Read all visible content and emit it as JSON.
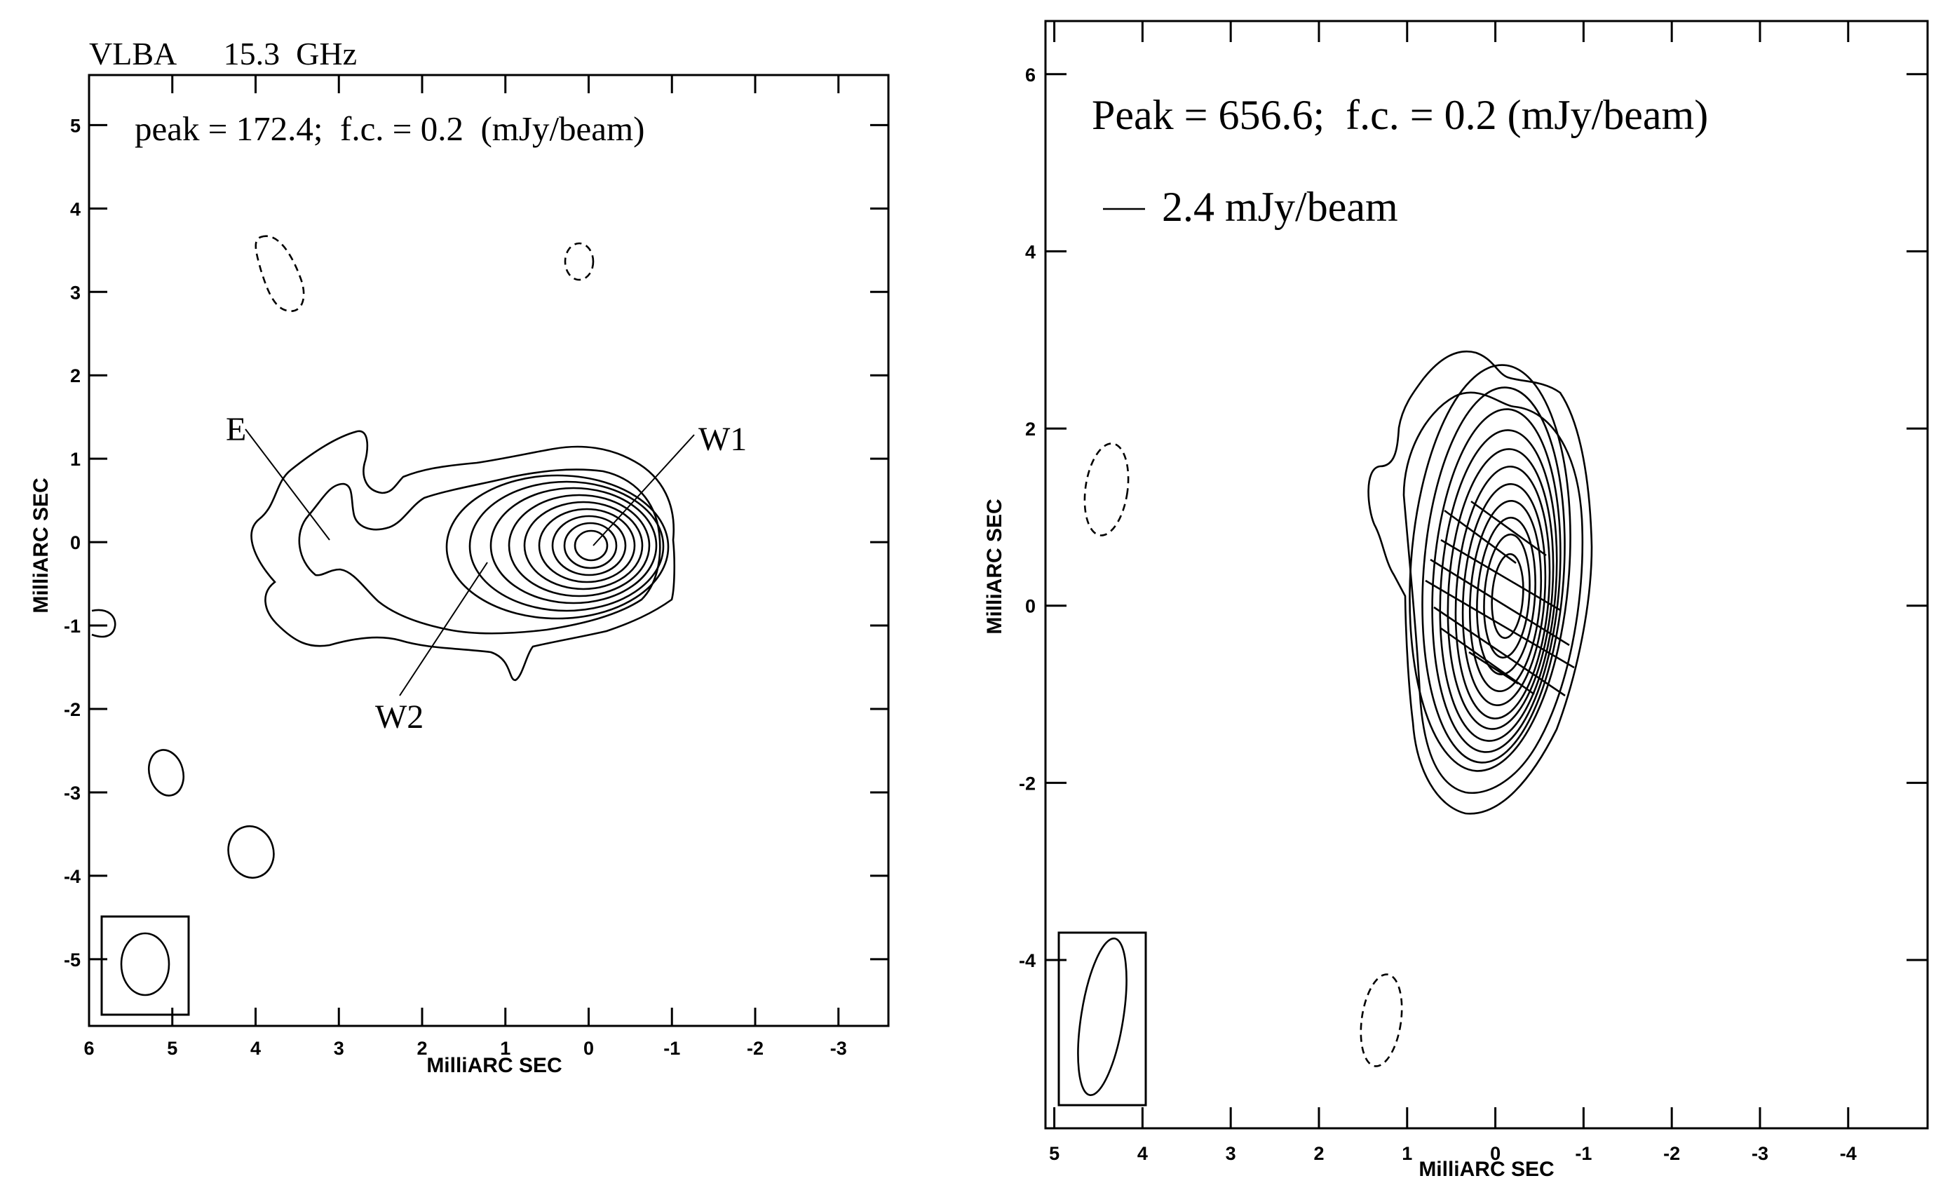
{
  "chart_data": [
    {
      "type": "contour",
      "title": "VLBA      15.3  GHz",
      "annotation": "peak = 172.4;  f.c. = 0.2  (mJy/beam)",
      "xlabel": "MilliARC SEC",
      "ylabel": "MilliARC SEC",
      "xlim": [
        6,
        -3.6
      ],
      "ylim": [
        -5.8,
        5.6
      ],
      "xticks": [
        6,
        5,
        4,
        3,
        2,
        1,
        0,
        -1,
        -2,
        -3
      ],
      "xtick_labels": [
        "6",
        "5",
        "4",
        "3",
        "2",
        "1",
        "0",
        "-1",
        "-2",
        "-3"
      ],
      "yticks": [
        5,
        4,
        3,
        2,
        1,
        0,
        -1,
        -2,
        -3,
        -4,
        -5
      ],
      "ytick_labels": [
        "5",
        "4",
        "3",
        "2",
        "1",
        "0",
        "-1",
        "-2",
        "-3",
        "-4",
        "-5"
      ],
      "peak_mJy_per_beam": 172.4,
      "first_contour_mJy_per_beam": 0.2,
      "components": [
        {
          "label": "E",
          "x": 3.2,
          "y": 0.1
        },
        {
          "label": "W1",
          "x": 0.0,
          "y": 0.0
        },
        {
          "label": "W2",
          "x": 1.3,
          "y": -0.2
        }
      ],
      "negative_contours": 2,
      "beam": {
        "x": 5.4,
        "y": -5.0,
        "major": 0.8,
        "minor": 0.6
      }
    },
    {
      "type": "contour",
      "title": "",
      "annotation": "Peak = 656.6;  f.c. = 0.2 (mJy/beam)",
      "vector_scale_label": "2.4 mJy/beam",
      "xlabel": "MilliARC SEC",
      "ylabel": "MilliARC SEC",
      "xlim": [
        5.1,
        -4.9
      ],
      "ylim": [
        -5.9,
        6.6
      ],
      "xticks": [
        5,
        4,
        3,
        2,
        1,
        0,
        -1,
        -2,
        -3,
        -4
      ],
      "xtick_labels": [
        "5",
        "4",
        "3",
        "2",
        "1",
        "0",
        "-1",
        "-2",
        "-3",
        "-4"
      ],
      "yticks": [
        6,
        4,
        2,
        0,
        -2,
        -4
      ],
      "ytick_labels": [
        "6",
        "4",
        "2",
        "0",
        "-2",
        "-4"
      ],
      "peak_mJy_per_beam": 656.6,
      "first_contour_mJy_per_beam": 0.2,
      "polarization_vectors": 8,
      "negative_contours": 2,
      "beam": {
        "x": 4.5,
        "y": -4.8,
        "major": 1.9,
        "minor": 0.5
      }
    }
  ]
}
